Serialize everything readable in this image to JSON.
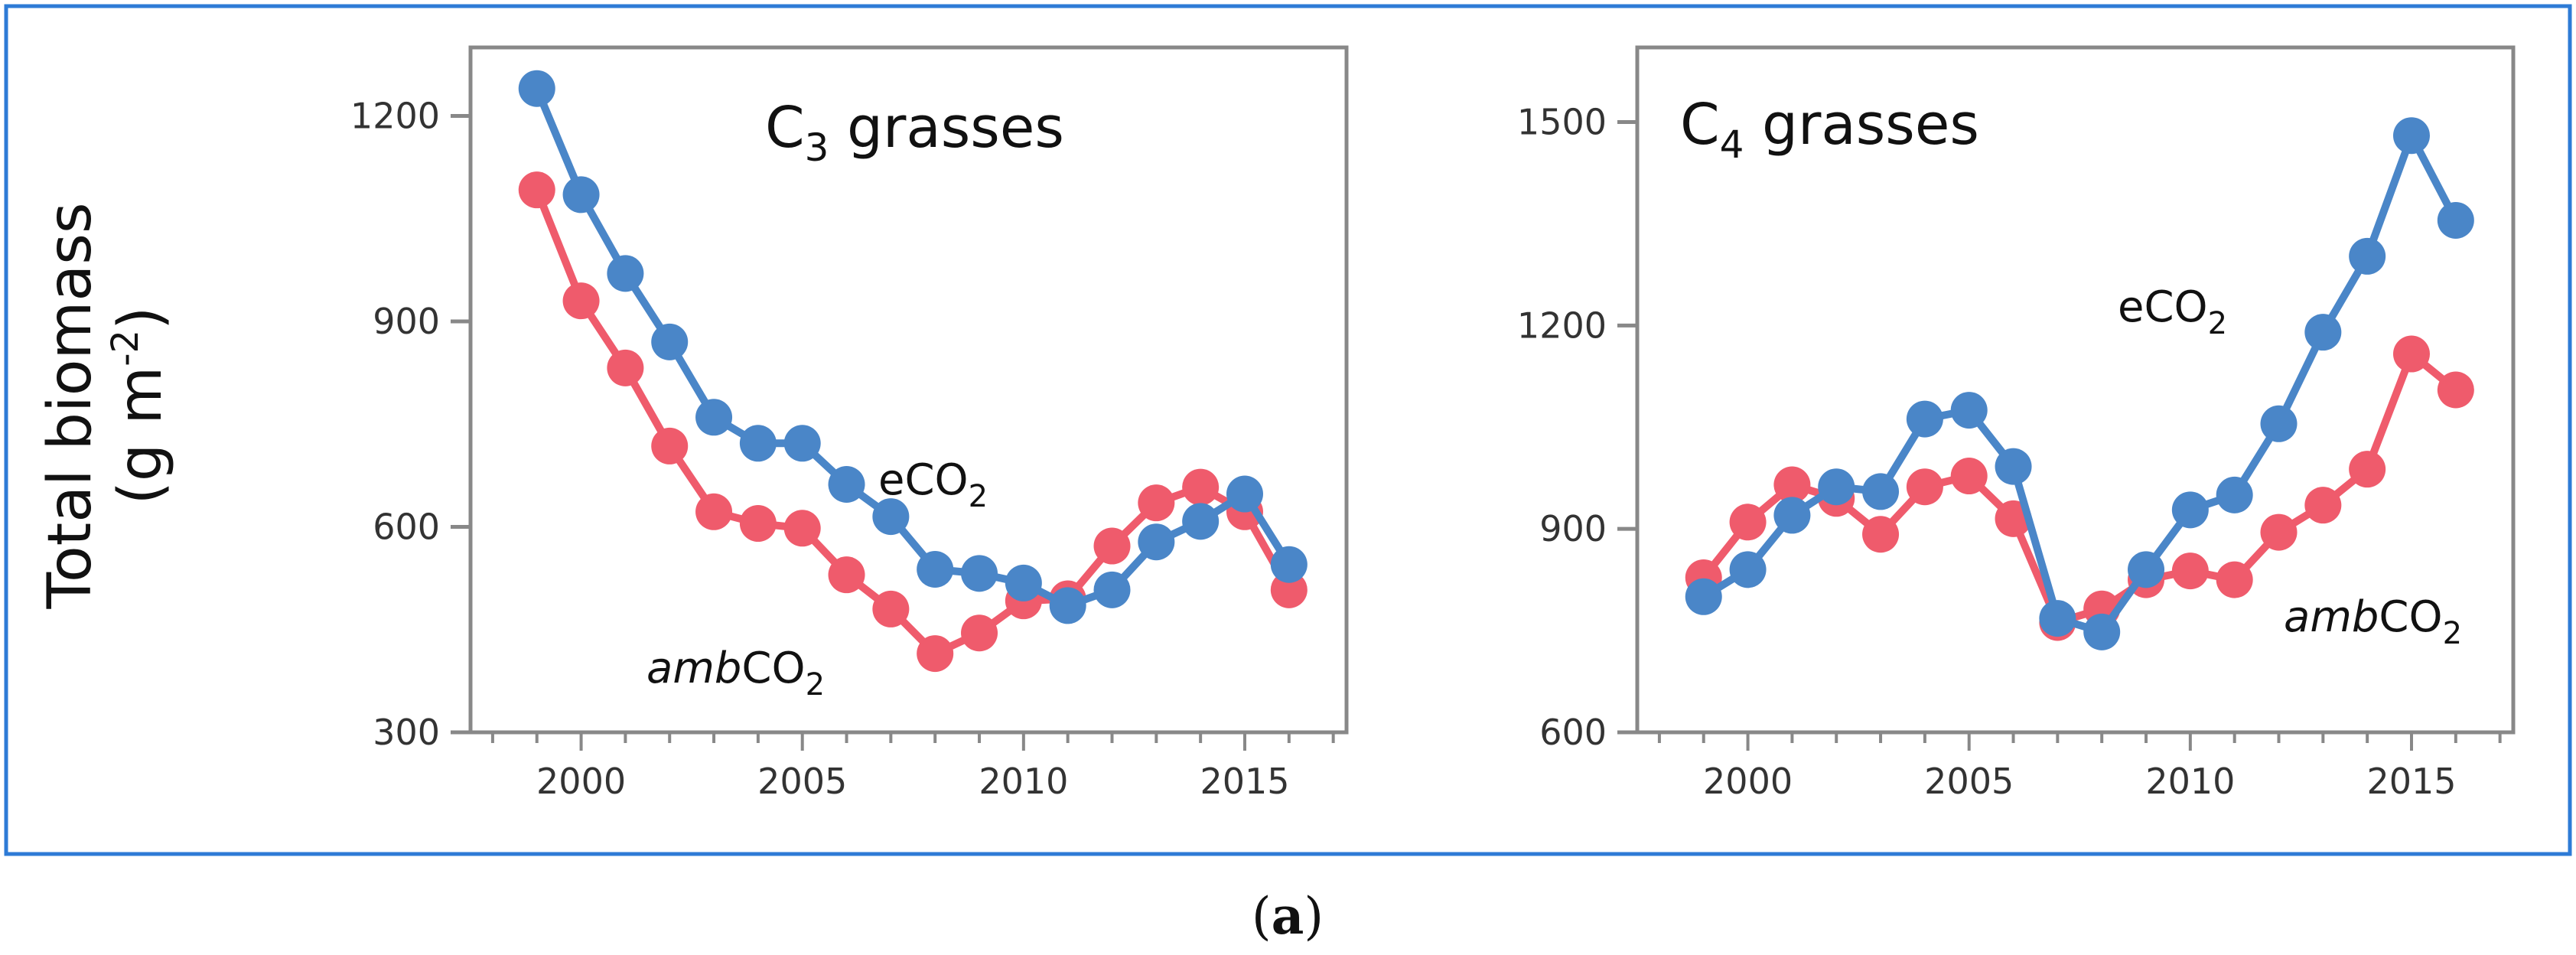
{
  "colors": {
    "eCO2": "#4a86c8",
    "ambCO2": "#ef5b6c",
    "border": "#2e7bd6",
    "axis": "#888888"
  },
  "y_axis_label": {
    "line1": "Total biomass",
    "line2_main": "(g m",
    "line2_sup": "-2",
    "line2_end": ")"
  },
  "caption": {
    "open": "(",
    "letter": "a",
    "close": ")"
  },
  "chart_data": [
    {
      "type": "line",
      "title": {
        "letter": "C",
        "sub": "3",
        "rest": " grasses"
      },
      "xlim": [
        1997.5,
        2017.3
      ],
      "ylim": [
        300,
        1300
      ],
      "xticks": [
        2000,
        2005,
        2010,
        2015
      ],
      "yticks": [
        300,
        600,
        900,
        1200
      ],
      "x": [
        1999,
        2000,
        2001,
        2002,
        2003,
        2004,
        2005,
        2006,
        2007,
        2008,
        2009,
        2010,
        2011,
        2012,
        2013,
        2014,
        2015,
        2016
      ],
      "series": [
        {
          "name": "eCO2",
          "prefix": "",
          "main": "eCO",
          "sub": "2",
          "color": "#4a86c8",
          "values": [
            1240,
            1085,
            970,
            870,
            760,
            722,
            722,
            662,
            615,
            538,
            532,
            518,
            485,
            508,
            578,
            608,
            648,
            545
          ]
        },
        {
          "name": "ambCO2",
          "prefix": "amb",
          "main": "CO",
          "sub": "2",
          "color": "#ef5b6c",
          "values": [
            1092,
            930,
            832,
            718,
            622,
            605,
            598,
            530,
            480,
            415,
            445,
            492,
            495,
            572,
            635,
            658,
            622,
            508
          ]
        }
      ]
    },
    {
      "type": "line",
      "title": {
        "letter": "C",
        "sub": "4",
        "rest": " grasses"
      },
      "xlim": [
        1997.5,
        2017.3
      ],
      "ylim": [
        600,
        1610
      ],
      "xticks": [
        2000,
        2005,
        2010,
        2015
      ],
      "yticks": [
        600,
        900,
        1200,
        1500
      ],
      "x": [
        1999,
        2000,
        2001,
        2002,
        2003,
        2004,
        2005,
        2006,
        2007,
        2008,
        2009,
        2010,
        2011,
        2012,
        2013,
        2014,
        2015,
        2016
      ],
      "series": [
        {
          "name": "eCO2",
          "prefix": "",
          "main": "eCO",
          "sub": "2",
          "color": "#4a86c8",
          "values": [
            800,
            840,
            920,
            962,
            955,
            1062,
            1075,
            992,
            768,
            748,
            840,
            928,
            950,
            1055,
            1190,
            1302,
            1480,
            1355
          ]
        },
        {
          "name": "ambCO2",
          "prefix": "amb",
          "main": "CO",
          "sub": "2",
          "color": "#ef5b6c",
          "values": [
            828,
            910,
            965,
            945,
            892,
            962,
            978,
            915,
            762,
            782,
            825,
            838,
            825,
            895,
            935,
            988,
            1158,
            1105
          ]
        }
      ]
    }
  ]
}
